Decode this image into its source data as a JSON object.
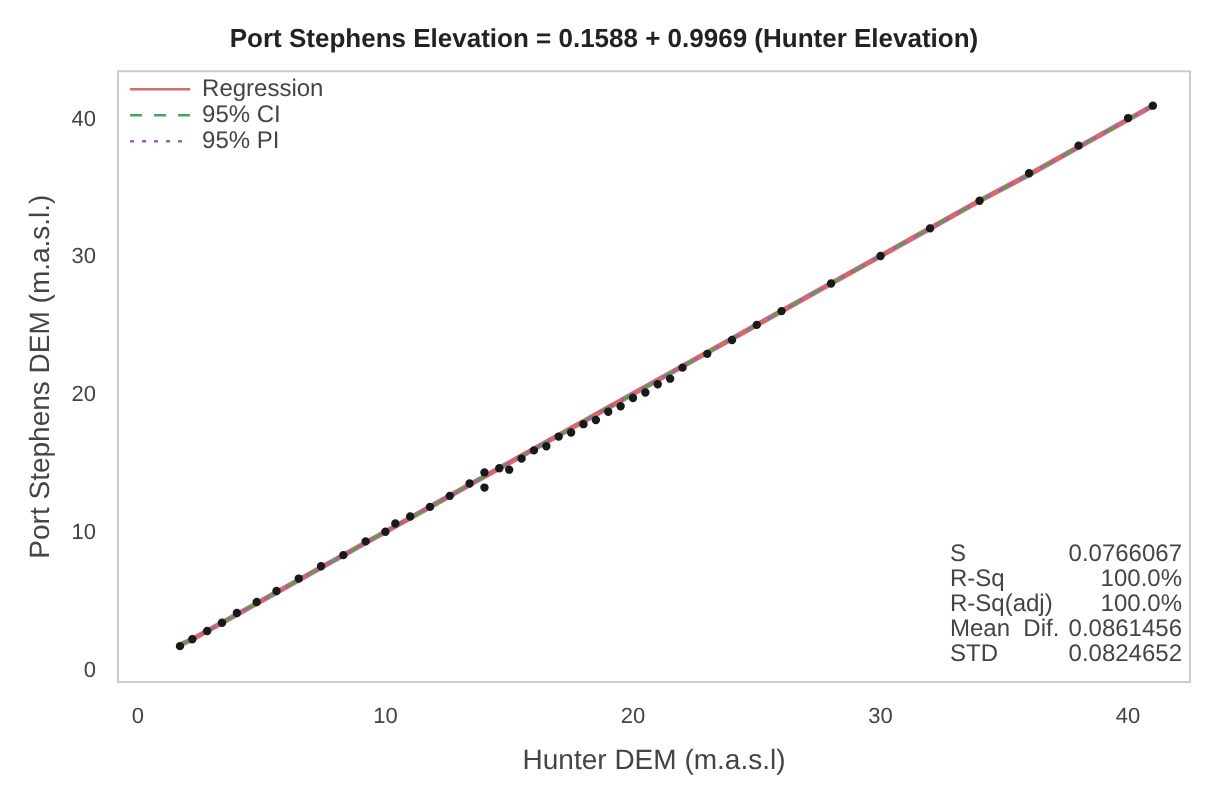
{
  "chart_data": {
    "type": "scatter",
    "title": "Port Stephens Elevation = 0.1588 + 0.9969 (Hunter Elevation)",
    "xlabel": "Hunter DEM (m.a.s.l)",
    "ylabel": "Port Stephens DEM (m.a.s.l.)",
    "x": [
      1.7,
      2.2,
      2.8,
      3.4,
      4,
      4.8,
      5.6,
      6.5,
      7.4,
      8.3,
      9.2,
      10,
      10.4,
      11,
      11.8,
      12.6,
      13.4,
      14,
      14,
      14.6,
      15,
      15.5,
      16,
      16.5,
      17,
      17.5,
      18,
      18.5,
      19,
      19.5,
      20,
      20.5,
      21,
      21.5,
      22,
      23,
      24,
      25,
      26,
      28,
      30,
      32,
      34,
      36,
      38,
      40,
      41
    ],
    "series": [
      {
        "color": "#1a1a1a",
        "marker": "circle",
        "values": [
          1.8,
          2.3,
          2.9,
          3.5,
          4.2,
          5,
          5.8,
          6.7,
          7.6,
          8.4,
          9.4,
          10.1,
          10.7,
          11.2,
          11.9,
          12.7,
          13.6,
          14.4,
          13.3,
          14.7,
          14.6,
          15.4,
          16,
          16.3,
          17,
          17.3,
          17.9,
          18.2,
          18.8,
          19.2,
          19.8,
          20.2,
          20.8,
          21.2,
          22,
          23,
          24,
          25.1,
          26.1,
          28.1,
          30.1,
          32.1,
          34.1,
          36.1,
          38.1,
          40.1,
          41
        ]
      },
      {
        "type": "line",
        "name": "Regression",
        "color": "#d46a6a",
        "line_style": "solid",
        "values": [
          1.9,
          2.3,
          2.9,
          3.5,
          4.1,
          4.9,
          5.7,
          6.6,
          7.5,
          8.4,
          9.3,
          10.1,
          10.5,
          11.1,
          11.9,
          12.7,
          13.5,
          14.1,
          14.1,
          14.7,
          15.1,
          15.6,
          16.1,
          16.6,
          17.1,
          17.6,
          18.1,
          18.6,
          19.1,
          19.6,
          20.1,
          20.6,
          21.1,
          21.6,
          22.1,
          23.1,
          24.1,
          25.1,
          26.1,
          28.1,
          30.1,
          32.1,
          34.1,
          36,
          38,
          40,
          41
        ]
      },
      {
        "type": "line",
        "name": "95% CI",
        "color": "#3aaa5c",
        "line_style": "dashed",
        "values": [
          1.9,
          2.3,
          2.9,
          3.5,
          4.1,
          4.9,
          5.7,
          6.6,
          7.5,
          8.4,
          9.3,
          10.1,
          10.5,
          11.1,
          11.9,
          12.7,
          13.5,
          14.1,
          14.1,
          14.7,
          15.1,
          15.6,
          16.1,
          16.6,
          17.1,
          17.6,
          18.1,
          18.6,
          19.1,
          19.6,
          20.1,
          20.6,
          21.1,
          21.6,
          22.1,
          23.1,
          24.1,
          25.1,
          26.1,
          28.1,
          30.1,
          32.1,
          34.1,
          36,
          38,
          40,
          41
        ]
      },
      {
        "type": "line",
        "name": "95% PI",
        "color": "#9a5fc0",
        "line_style": "dotted",
        "values": [
          1.9,
          2.3,
          2.9,
          3.5,
          4.1,
          4.9,
          5.7,
          6.6,
          7.5,
          8.4,
          9.3,
          10.1,
          10.5,
          11.1,
          11.9,
          12.7,
          13.5,
          14.1,
          14.1,
          14.7,
          15.1,
          15.6,
          16.1,
          16.6,
          17.1,
          17.6,
          18.1,
          18.6,
          19.1,
          19.6,
          20.1,
          20.6,
          21.1,
          21.6,
          22.1,
          23.1,
          24.1,
          25.1,
          26.1,
          28.1,
          30.1,
          32.1,
          34.1,
          36,
          38,
          40,
          41
        ]
      }
    ],
    "xlim": [
      -0.8,
      42.5
    ],
    "ylim": [
      -0.8,
      43.5
    ],
    "xticks": [
      0,
      10,
      20,
      30,
      40
    ],
    "yticks": [
      0,
      10,
      20,
      30,
      40
    ],
    "grid": false,
    "legend": "top left",
    "annotations": [
      "S",
      "0.0766067",
      "R-Sq",
      "100.0%",
      "R-Sq(adj)",
      "100.0%",
      "Mean  Dif.",
      "0.0861456",
      "STD",
      "0.0824652"
    ]
  }
}
